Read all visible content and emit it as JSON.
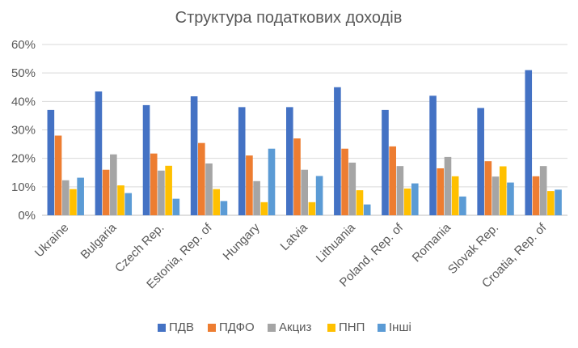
{
  "chart_data": {
    "type": "bar",
    "title": "Структура податкових доходів",
    "categories": [
      "Ukraine",
      "Bulgaria",
      "Czech Rep.",
      "Estonia, Rep. of",
      "Hungary",
      "Latvia",
      "Lithuania",
      "Poland, Rep. of",
      "Romania",
      "Slovak Rep.",
      "Croatia, Rep. of"
    ],
    "y_tick_labels": [
      "0%",
      "10%",
      "20%",
      "30%",
      "40%",
      "50%",
      "60%"
    ],
    "ylim": [
      0,
      60
    ],
    "y_unit": "%",
    "grid": true,
    "legend_position": "bottom",
    "series": [
      {
        "name": "ПДВ",
        "color": "#4472c4",
        "values": [
          37,
          43.5,
          38.7,
          41.8,
          38,
          38,
          45,
          37,
          42,
          37.7,
          51
        ]
      },
      {
        "name": "ПДФО",
        "color": "#ed7d31",
        "values": [
          28,
          16,
          21.7,
          25.4,
          21,
          27,
          23.4,
          24.2,
          16.5,
          19,
          13.7
        ]
      },
      {
        "name": "Акциз",
        "color": "#a5a5a5",
        "values": [
          12.3,
          21.4,
          15.7,
          18.2,
          12,
          16,
          18.5,
          17.3,
          20.5,
          13.6,
          17.3
        ]
      },
      {
        "name": "ПНП",
        "color": "#ffc000",
        "values": [
          9.2,
          10.5,
          17.4,
          9.2,
          4.6,
          4.6,
          8.8,
          9.4,
          13.7,
          17.2,
          8.5
        ]
      },
      {
        "name": "Інші",
        "color": "#5b9bd5",
        "values": [
          13.2,
          7.8,
          5.8,
          5,
          23.4,
          13.8,
          3.8,
          11.2,
          6.6,
          11.5,
          9
        ]
      }
    ]
  }
}
